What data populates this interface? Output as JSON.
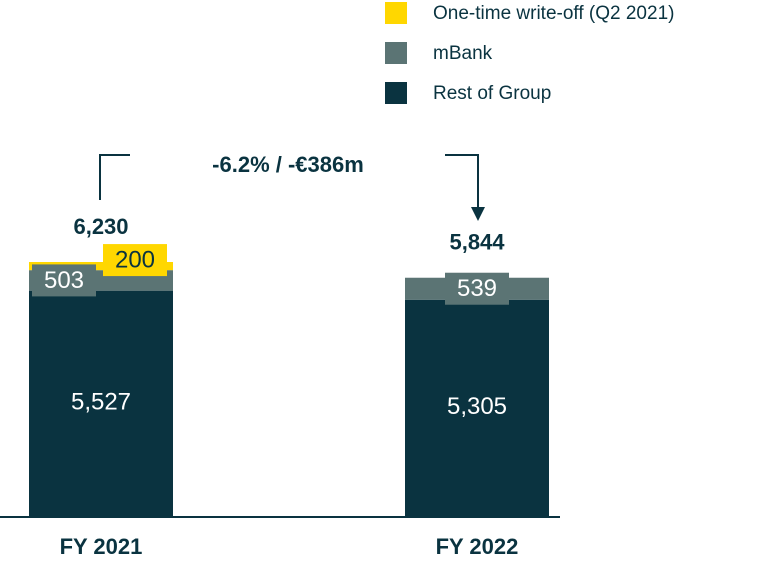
{
  "chart_data": {
    "type": "stacked_bar",
    "categories": [
      "FY 2021",
      "FY 2022"
    ],
    "series": [
      {
        "name": "One-time write-off (Q2 2021)",
        "color": "#ffd700",
        "values": [
          200,
          null
        ],
        "value_labels": [
          "200",
          null
        ]
      },
      {
        "name": "mBank",
        "color": "#5b7474",
        "values": [
          503,
          539
        ],
        "value_labels": [
          "503",
          "539"
        ]
      },
      {
        "name": "Rest of Group",
        "color": "#0a3340",
        "values": [
          5527,
          5305
        ],
        "value_labels": [
          "5,527",
          "5,305"
        ]
      }
    ],
    "totals": [
      6230,
      5844
    ],
    "total_labels": [
      "6,230",
      "5,844"
    ],
    "annotation": "-6.2% / -€386m"
  }
}
